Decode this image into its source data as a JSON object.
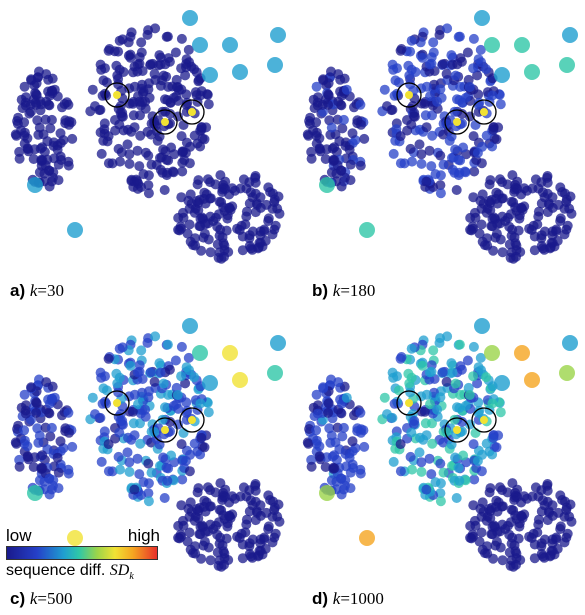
{
  "panels": [
    {
      "letter": "a)",
      "k_label": "k",
      "eq": "=30",
      "spread": 0.0
    },
    {
      "letter": "b)",
      "k_label": "k",
      "eq": "=180",
      "spread": 0.3
    },
    {
      "letter": "c)",
      "k_label": "k",
      "eq": "=500",
      "spread": 0.6
    },
    {
      "letter": "d)",
      "k_label": "k",
      "eq": "=1000",
      "spread": 0.9
    }
  ],
  "legend": {
    "low": "low",
    "high": "high",
    "desc_prefix": "sequence diff. ",
    "desc_var": "SD",
    "desc_sub": "k"
  },
  "colors": {
    "low": "#1a1a8c",
    "mid_low": "#2540c8",
    "mid": "#1f9fd0",
    "teal": "#2fc7a8",
    "green": "#9bd44a",
    "yellow": "#f1e234",
    "orange": "#f5a521",
    "high": "#e8302a"
  }
}
